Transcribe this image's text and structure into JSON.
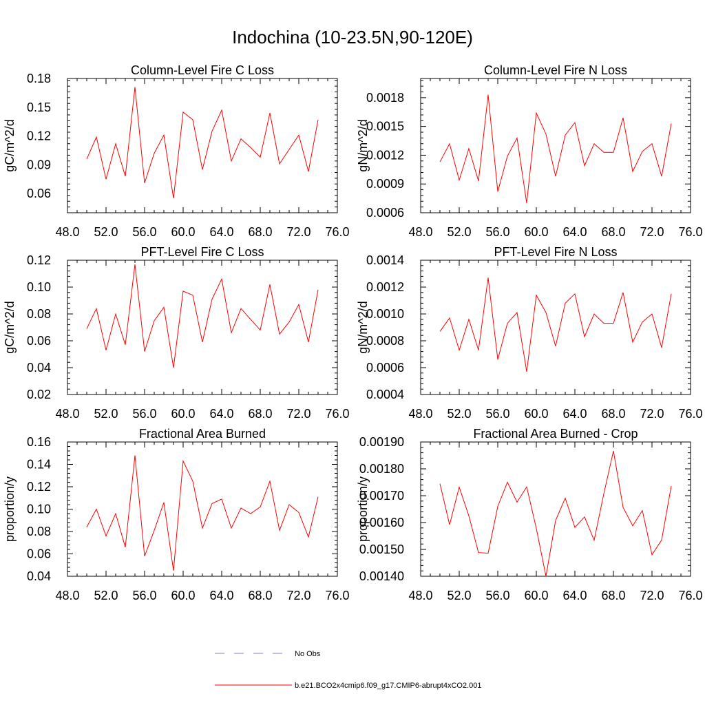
{
  "title": "Indochina (10-23.5N,90-120E)",
  "x_tick_labels": [
    "48.0",
    "52.0",
    "56.0",
    "60.0",
    "64.0",
    "68.0",
    "72.0",
    "76.0"
  ],
  "chart_data": [
    {
      "type": "line",
      "title": "Column-Level Fire C Loss",
      "ylabel": "gC/m^2/d",
      "xlim": [
        48,
        76
      ],
      "ylim": [
        0.04,
        0.18
      ],
      "y_tick_labels": [
        "0.06",
        "0.09",
        "0.12",
        "0.15",
        "0.18"
      ],
      "series": [
        {
          "name": "b.e21.BCO2x4cmip6.f09_g17.CMIP6-abrupt4xCO2.001",
          "x": [
            50,
            51,
            52,
            53,
            54,
            55,
            56,
            57,
            58,
            59,
            60,
            61,
            62,
            63,
            64,
            65,
            66,
            67,
            68,
            69,
            70,
            71,
            72,
            73,
            74
          ],
          "values": [
            0.096,
            0.119,
            0.075,
            0.112,
            0.078,
            0.171,
            0.071,
            0.102,
            0.121,
            0.055,
            0.145,
            0.137,
            0.085,
            0.125,
            0.147,
            0.094,
            0.117,
            0.108,
            0.098,
            0.144,
            0.091,
            0.106,
            0.121,
            0.083,
            0.137
          ]
        }
      ]
    },
    {
      "type": "line",
      "title": "Column-Level Fire N Loss",
      "ylabel": "gN/m^2/d",
      "xlim": [
        48,
        76
      ],
      "ylim": [
        0.0006,
        0.002
      ],
      "y_tick_labels": [
        "0.0006",
        "0.0009",
        "0.0012",
        "0.0015",
        "0.0018"
      ],
      "series": [
        {
          "name": "b.e21.BCO2x4cmip6.f09_g17.CMIP6-abrupt4xCO2.001",
          "x": [
            50,
            51,
            52,
            53,
            54,
            55,
            56,
            57,
            58,
            59,
            60,
            61,
            62,
            63,
            64,
            65,
            66,
            67,
            68,
            69,
            70,
            71,
            72,
            73,
            74
          ],
          "values": [
            0.00113,
            0.00132,
            0.00094,
            0.00127,
            0.00093,
            0.00183,
            0.00082,
            0.00119,
            0.00138,
            0.0007,
            0.00164,
            0.00142,
            0.00098,
            0.00141,
            0.00154,
            0.00109,
            0.00132,
            0.00123,
            0.00123,
            0.00159,
            0.00103,
            0.00124,
            0.00132,
            0.00098,
            0.00153
          ]
        }
      ]
    },
    {
      "type": "line",
      "title": "PFT-Level Fire C Loss",
      "ylabel": "gC/m^2/d",
      "xlim": [
        48,
        76
      ],
      "ylim": [
        0.02,
        0.12
      ],
      "y_tick_labels": [
        "0.02",
        "0.04",
        "0.06",
        "0.08",
        "0.10",
        "0.12"
      ],
      "series": [
        {
          "name": "b.e21.BCO2x4cmip6.f09_g17.CMIP6-abrupt4xCO2.001",
          "x": [
            50,
            51,
            52,
            53,
            54,
            55,
            56,
            57,
            58,
            59,
            60,
            61,
            62,
            63,
            64,
            65,
            66,
            67,
            68,
            69,
            70,
            71,
            72,
            73,
            74
          ],
          "values": [
            0.069,
            0.084,
            0.053,
            0.08,
            0.057,
            0.117,
            0.052,
            0.075,
            0.085,
            0.04,
            0.097,
            0.094,
            0.059,
            0.091,
            0.106,
            0.066,
            0.084,
            0.076,
            0.068,
            0.102,
            0.065,
            0.074,
            0.087,
            0.059,
            0.098
          ]
        }
      ]
    },
    {
      "type": "line",
      "title": "PFT-Level Fire N Loss",
      "ylabel": "gN/m^2/d",
      "xlim": [
        48,
        76
      ],
      "ylim": [
        0.0004,
        0.0014
      ],
      "y_tick_labels": [
        "0.0004",
        "0.0006",
        "0.0008",
        "0.0010",
        "0.0012",
        "0.0014"
      ],
      "series": [
        {
          "name": "b.e21.BCO2x4cmip6.f09_g17.CMIP6-abrupt4xCO2.001",
          "x": [
            50,
            51,
            52,
            53,
            54,
            55,
            56,
            57,
            58,
            59,
            60,
            61,
            62,
            63,
            64,
            65,
            66,
            67,
            68,
            69,
            70,
            71,
            72,
            73,
            74
          ],
          "values": [
            0.00087,
            0.00097,
            0.00073,
            0.00096,
            0.00073,
            0.00127,
            0.00066,
            0.00093,
            0.00101,
            0.00057,
            0.00114,
            0.00101,
            0.00076,
            0.00108,
            0.00115,
            0.00083,
            0.001,
            0.00093,
            0.00093,
            0.00116,
            0.00079,
            0.00094,
            0.001,
            0.00075,
            0.00115
          ]
        }
      ]
    },
    {
      "type": "line",
      "title": "Fractional Area Burned",
      "ylabel": "proportion/y",
      "xlim": [
        48,
        76
      ],
      "ylim": [
        0.04,
        0.16
      ],
      "y_tick_labels": [
        "0.04",
        "0.06",
        "0.08",
        "0.10",
        "0.12",
        "0.14",
        "0.16"
      ],
      "series": [
        {
          "name": "b.e21.BCO2x4cmip6.f09_g17.CMIP6-abrupt4xCO2.001",
          "x": [
            50,
            51,
            52,
            53,
            54,
            55,
            56,
            57,
            58,
            59,
            60,
            61,
            62,
            63,
            64,
            65,
            66,
            67,
            68,
            69,
            70,
            71,
            72,
            73,
            74
          ],
          "values": [
            0.084,
            0.1,
            0.076,
            0.096,
            0.066,
            0.148,
            0.058,
            0.081,
            0.106,
            0.045,
            0.143,
            0.125,
            0.083,
            0.105,
            0.109,
            0.083,
            0.101,
            0.096,
            0.102,
            0.125,
            0.081,
            0.104,
            0.097,
            0.075,
            0.111
          ]
        }
      ]
    },
    {
      "type": "line",
      "title": "Fractional Area Burned - Crop",
      "ylabel": "proportion/y",
      "xlim": [
        48,
        76
      ],
      "ylim": [
        0.0014,
        0.0019
      ],
      "y_tick_labels": [
        "0.00140",
        "0.00150",
        "0.00160",
        "0.00170",
        "0.00180",
        "0.00190"
      ],
      "series": [
        {
          "name": "b.e21.BCO2x4cmip6.f09_g17.CMIP6-abrupt4xCO2.001",
          "x": [
            50,
            51,
            52,
            53,
            54,
            55,
            56,
            57,
            58,
            59,
            60,
            61,
            62,
            63,
            64,
            65,
            66,
            67,
            68,
            69,
            70,
            71,
            72,
            73,
            74
          ],
          "values": [
            0.001745,
            0.001592,
            0.001732,
            0.001625,
            0.001488,
            0.001486,
            0.00166,
            0.00175,
            0.001676,
            0.001733,
            0.001578,
            0.0014,
            0.001608,
            0.001691,
            0.001582,
            0.001621,
            0.001534,
            0.001707,
            0.001867,
            0.001657,
            0.001588,
            0.001645,
            0.00148,
            0.001535,
            0.001736
          ]
        }
      ]
    }
  ],
  "legend": [
    {
      "label": "No Obs",
      "color": "#8080c0",
      "style": "dashed"
    },
    {
      "label": "b.e21.BCO2x4cmip6.f09_g17.CMIP6-abrupt4xCO2.001",
      "color": "#ff0000",
      "style": "solid"
    }
  ]
}
